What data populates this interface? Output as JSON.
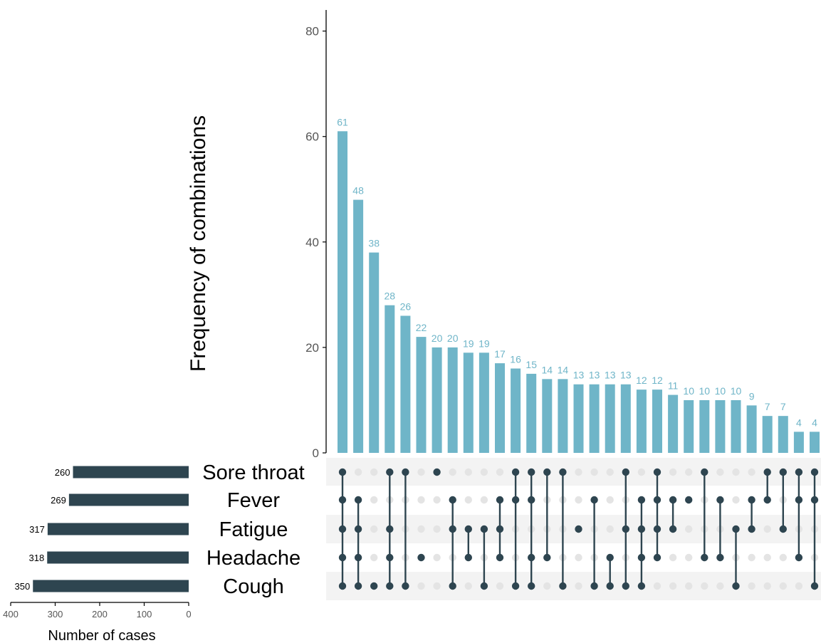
{
  "chart_data": {
    "type": "upset",
    "title": "",
    "intersections": {
      "ylabel": "Frequency of combinations",
      "ylim": [
        0,
        84
      ],
      "ticks": [
        0,
        20,
        40,
        60,
        80
      ],
      "values": [
        61,
        48,
        38,
        28,
        26,
        22,
        20,
        20,
        19,
        19,
        17,
        16,
        15,
        14,
        14,
        13,
        13,
        13,
        13,
        12,
        12,
        11,
        10,
        10,
        10,
        10,
        9,
        7,
        7,
        4,
        4
      ],
      "labels": [
        "61",
        "48",
        "38",
        "28",
        "26",
        "22",
        "20",
        "20",
        "19",
        "19",
        "17",
        "16",
        "15",
        "14",
        "14",
        "13",
        "13",
        "13",
        "13",
        "12",
        "12",
        "11",
        "10",
        "10",
        "10",
        "10",
        "9",
        "7",
        "7",
        "4",
        "4"
      ],
      "combinations": [
        [
          "Sore throat",
          "Fever",
          "Fatigue",
          "Headache",
          "Cough"
        ],
        [
          "Fever",
          "Fatigue",
          "Headache",
          "Cough"
        ],
        [
          "Cough"
        ],
        [
          "Sore throat",
          "Fatigue",
          "Headache",
          "Cough"
        ],
        [
          "Sore throat",
          "Cough"
        ],
        [
          "Headache"
        ],
        [
          "Sore throat"
        ],
        [
          "Fever",
          "Fatigue",
          "Cough"
        ],
        [
          "Fatigue",
          "Headache"
        ],
        [
          "Fatigue",
          "Cough"
        ],
        [
          "Fever",
          "Fatigue",
          "Headache"
        ],
        [
          "Sore throat",
          "Fever",
          "Cough"
        ],
        [
          "Sore throat",
          "Fever",
          "Headache",
          "Cough"
        ],
        [
          "Sore throat",
          "Headache"
        ],
        [
          "Sore throat",
          "Cough"
        ],
        [
          "Fatigue"
        ],
        [
          "Fever",
          "Cough"
        ],
        [
          "Headache",
          "Cough"
        ],
        [
          "Sore throat",
          "Fatigue",
          "Cough"
        ],
        [
          "Fever",
          "Fatigue",
          "Headache",
          "Cough"
        ],
        [
          "Sore throat",
          "Fever",
          "Fatigue",
          "Headache"
        ],
        [
          "Fever",
          "Fatigue"
        ],
        [
          "Fever"
        ],
        [
          "Sore throat",
          "Headache"
        ],
        [
          "Fever",
          "Headache"
        ],
        [
          "Fatigue",
          "Cough"
        ],
        [
          "Fever",
          "Fatigue"
        ],
        [
          "Sore throat",
          "Fever"
        ],
        [
          "Sore throat",
          "Fatigue"
        ],
        [
          "Sore throat",
          "Fever",
          "Headache"
        ],
        [
          "Sore throat",
          "Fever",
          "Cough"
        ]
      ]
    },
    "sets": {
      "names": [
        "Sore throat",
        "Fever",
        "Fatigue",
        "Headache",
        "Cough"
      ],
      "sizes": [
        260,
        269,
        317,
        318,
        350
      ],
      "labels": [
        "260",
        "269",
        "317",
        "318",
        "350"
      ],
      "xlabel": "Number of cases",
      "xlim": [
        0,
        400
      ],
      "ticks": [
        400,
        300,
        200,
        100,
        0
      ],
      "x_reversed": true
    },
    "colors": {
      "bar": "#6fb5c8",
      "bar_label": "#6fb5c8",
      "set_bar": "#2e4550",
      "dot_active": "#2e4550",
      "dot_inactive": "#e4e4e4",
      "stripe": "#f3f3f3",
      "axis": "#000000",
      "tick_text": "#555555"
    }
  }
}
